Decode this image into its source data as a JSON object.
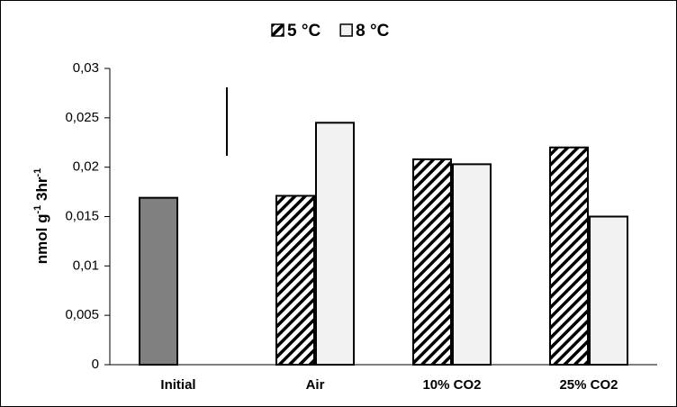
{
  "chart_data": {
    "type": "bar",
    "ylabel": [
      "nmol g",
      "-1",
      " 3hr",
      "-1"
    ],
    "categories": [
      "Initial",
      "Air",
      "10% CO2",
      "25% CO2"
    ],
    "series": [
      {
        "name": "5 °C",
        "color": "hatch",
        "values": [
          null,
          0.0171,
          0.0208,
          0.022
        ]
      },
      {
        "name": "8 °C",
        "color": "#f2f2f2",
        "values": [
          null,
          0.0245,
          0.0203,
          0.015
        ]
      },
      {
        "color": "#808080",
        "values": [
          0.0169,
          null,
          null,
          null
        ]
      }
    ],
    "ylim": [
      0,
      0.03
    ],
    "yticks": [
      0,
      {
        "value": 0.005,
        "label": "0,005"
      },
      {
        "value": 0.01,
        "label": "0,01"
      },
      {
        "value": 0.015,
        "label": "0,015"
      },
      {
        "value": 0.02,
        "label": "0,02"
      },
      {
        "value": 0.025,
        "label": "0,025"
      },
      {
        "value": 0.03,
        "label": "0,03"
      }
    ]
  }
}
